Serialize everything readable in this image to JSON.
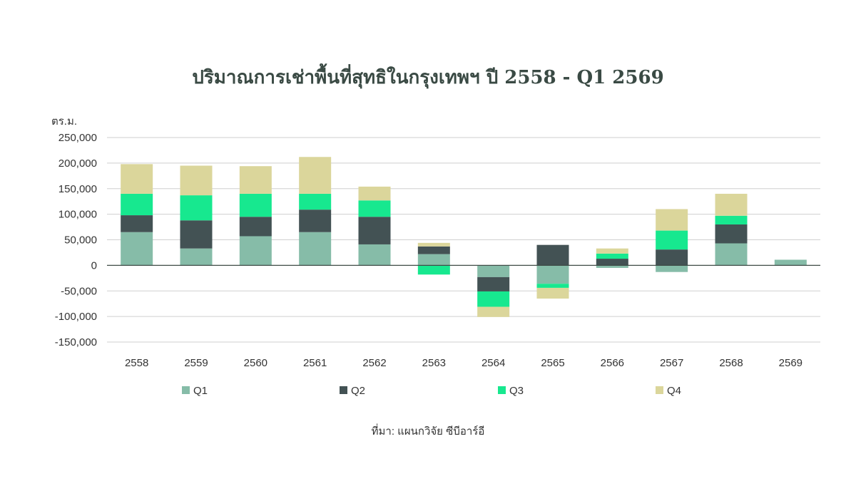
{
  "title": "ปริมาณการเช่าพื้นที่สุทธิในกรุงเทพฯ ปี 2558 - Q1 2569",
  "source": "ที่มา: แผนกวิจัย ซีบีอาร์อี",
  "chart_data": {
    "type": "bar",
    "stacked": true,
    "title": "ปริมาณการเช่าพื้นที่สุทธิในกรุงเทพฯ ปี 2558 - Q1 2569",
    "ylabel": "ตร.ม.",
    "xlabel": "",
    "ylim": [
      -150000,
      250000
    ],
    "yticks": [
      250000,
      200000,
      150000,
      100000,
      50000,
      0,
      -50000,
      -100000,
      -150000
    ],
    "ytick_labels": [
      "250,000",
      "200,000",
      "150,000",
      "100,000",
      "50,000",
      "0",
      "-50,000",
      "-100,000",
      "-150,000"
    ],
    "grid": true,
    "legend_position": "bottom",
    "categories": [
      "2558",
      "2559",
      "2560",
      "2561",
      "2562",
      "2563",
      "2564",
      "2565",
      "2566",
      "2567",
      "2568",
      "2569"
    ],
    "series": [
      {
        "name": "Q1",
        "color": "#86bca8",
        "values": [
          65000,
          33000,
          57000,
          65000,
          41000,
          22000,
          -23000,
          -36000,
          -5000,
          -13000,
          43000,
          11000
        ]
      },
      {
        "name": "Q2",
        "color": "#435254",
        "values": [
          33000,
          55000,
          38000,
          44000,
          54000,
          15000,
          -28000,
          40000,
          13000,
          31000,
          37000,
          0
        ]
      },
      {
        "name": "Q3",
        "color": "#17e88f",
        "values": [
          42000,
          49000,
          45000,
          31000,
          32000,
          -18000,
          -30000,
          -8000,
          10000,
          37000,
          17000,
          0
        ]
      },
      {
        "name": "Q4",
        "color": "#dbd69b",
        "values": [
          58000,
          58000,
          54000,
          72000,
          27000,
          7000,
          -20000,
          -21000,
          10000,
          42000,
          43000,
          0
        ]
      }
    ]
  }
}
